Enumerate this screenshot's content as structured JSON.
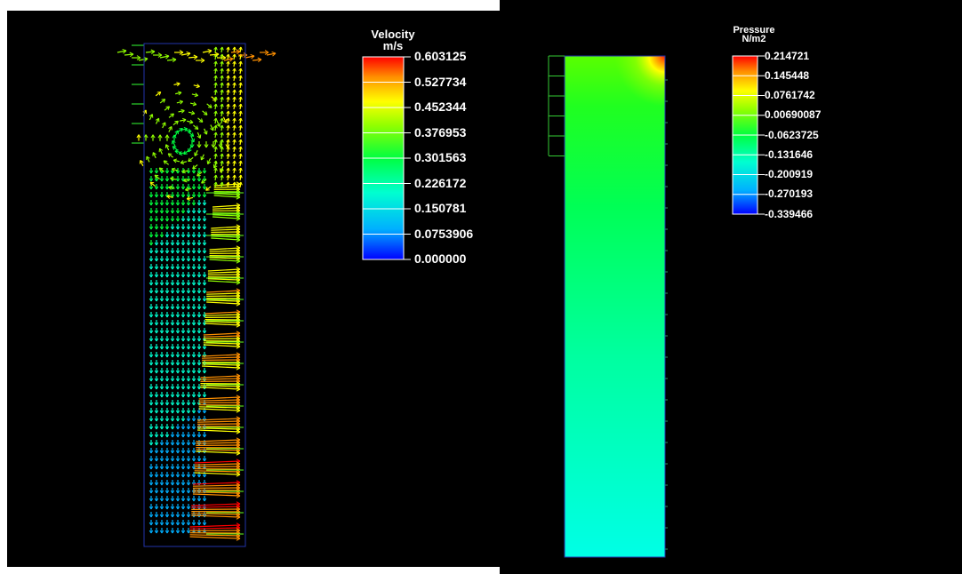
{
  "chart_data": [
    {
      "type": "heatmap",
      "subtype": "velocity-vector-field",
      "colorbar": {
        "title": "Velocity",
        "unit": "m/s",
        "ticks": [
          "0.603125",
          "0.527734",
          "0.452344",
          "0.376953",
          "0.301563",
          "0.226172",
          "0.150781",
          "0.0753906",
          "0.000000"
        ],
        "range": [
          0.0,
          0.603125
        ]
      },
      "colormap": [
        "#0000ff",
        "#00b0ff",
        "#00ffd0",
        "#00ff40",
        "#90ff00",
        "#ffff00",
        "#ff9000",
        "#ff0000"
      ],
      "background": "#000000",
      "domain_outline_color": "#2233aa"
    },
    {
      "type": "heatmap",
      "subtype": "pressure-contour",
      "colorbar": {
        "title": "Pressure",
        "unit": "N/m2",
        "ticks": [
          "0.214721",
          "0.145448",
          "0.0761742",
          "0.00690087",
          "-0.0623725",
          "-0.131646",
          "-0.200919",
          "-0.270193",
          "-0.339466"
        ],
        "range": [
          -0.339466,
          0.214721
        ]
      },
      "colormap": [
        "#0000ff",
        "#00b0ff",
        "#00ffd0",
        "#00ff40",
        "#90ff00",
        "#ffff00",
        "#ff9000",
        "#ff0000"
      ],
      "background": "#000000",
      "domain_outline_color": "#2233aa"
    }
  ]
}
